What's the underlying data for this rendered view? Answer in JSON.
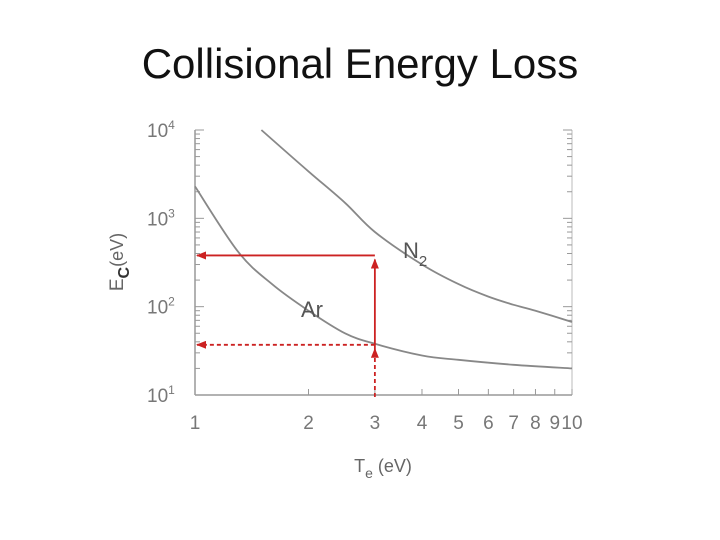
{
  "slide": {
    "title": "Collisional Energy Loss"
  },
  "chart_data": {
    "type": "line",
    "title": "Collisional Energy Loss",
    "xlabel": {
      "base": "T",
      "sub": "e",
      "rest": " (eV)"
    },
    "ylabel": {
      "base": "E",
      "sub": "c",
      "rest": "(eV)"
    },
    "x_scale": "log",
    "y_scale": "log",
    "xlim": [
      1,
      10
    ],
    "ylim": [
      10,
      10000
    ],
    "x_ticks": [
      1,
      2,
      3,
      4,
      5,
      6,
      7,
      8,
      9,
      10
    ],
    "x_tick_labels": [
      "1",
      "2",
      "3",
      "4",
      "5",
      "6",
      "7",
      "8",
      "9",
      "10"
    ],
    "y_ticks": [
      10,
      100,
      1000,
      10000
    ],
    "y_tick_labels": [
      {
        "base": "10",
        "exp": "1"
      },
      {
        "base": "10",
        "exp": "2"
      },
      {
        "base": "10",
        "exp": "3"
      },
      {
        "base": "10",
        "exp": "4"
      }
    ],
    "series": [
      {
        "name": "N2",
        "label_base": "N",
        "label_sub": "2",
        "color": "#888888",
        "points": [
          [
            1.5,
            10000
          ],
          [
            2,
            3400
          ],
          [
            2.5,
            1500
          ],
          [
            3,
            700
          ],
          [
            4,
            300
          ],
          [
            5,
            180
          ],
          [
            6,
            130
          ],
          [
            7,
            105
          ],
          [
            8,
            90
          ],
          [
            10,
            67
          ]
        ]
      },
      {
        "name": "Ar",
        "label_base": "Ar",
        "label_sub": "",
        "color": "#888888",
        "points": [
          [
            1,
            2300
          ],
          [
            1.3,
            420
          ],
          [
            1.6,
            180
          ],
          [
            2,
            90
          ],
          [
            2.5,
            50
          ],
          [
            3,
            38
          ],
          [
            4,
            28
          ],
          [
            5,
            25
          ],
          [
            7,
            22
          ],
          [
            10,
            20
          ]
        ]
      }
    ],
    "annotations": [
      {
        "type": "solid",
        "color": "#cc2222",
        "x": 3,
        "y_from": 30,
        "y_to": 380,
        "x_to": 1
      },
      {
        "type": "dashed",
        "color": "#cc2222",
        "x": 3,
        "y_from": 10,
        "y_to": 37,
        "x_to": 1
      }
    ],
    "grid": false
  }
}
